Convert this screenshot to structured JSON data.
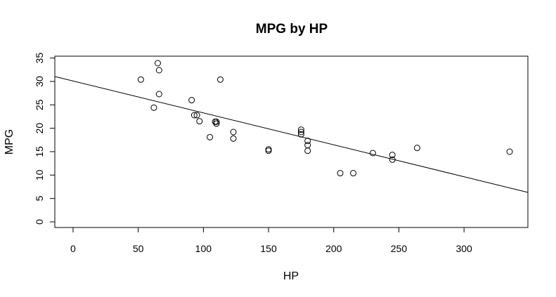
{
  "chart_data": {
    "type": "scatter",
    "title": "MPG by HP",
    "xlabel": "HP",
    "ylabel": "MPG",
    "xlim": [
      -14,
      349
    ],
    "ylim": [
      -1.2,
      35.4
    ],
    "grid": false,
    "xticks": [
      0,
      50,
      100,
      150,
      200,
      250,
      300
    ],
    "xtick_labels": [
      "0",
      "50",
      "100",
      "150",
      "200",
      "250",
      "300"
    ],
    "yticks": [
      0,
      5,
      10,
      15,
      20,
      25,
      30,
      35
    ],
    "ytick_labels": [
      "0",
      "5",
      "10",
      "15",
      "20",
      "25",
      "30",
      "35"
    ],
    "points": [
      {
        "x": 110,
        "y": 21.0
      },
      {
        "x": 110,
        "y": 21.0
      },
      {
        "x": 93,
        "y": 22.8
      },
      {
        "x": 110,
        "y": 21.4
      },
      {
        "x": 175,
        "y": 18.7
      },
      {
        "x": 105,
        "y": 18.1
      },
      {
        "x": 245,
        "y": 14.3
      },
      {
        "x": 62,
        "y": 24.4
      },
      {
        "x": 95,
        "y": 22.8
      },
      {
        "x": 123,
        "y": 19.2
      },
      {
        "x": 123,
        "y": 17.8
      },
      {
        "x": 180,
        "y": 16.4
      },
      {
        "x": 180,
        "y": 17.3
      },
      {
        "x": 180,
        "y": 15.2
      },
      {
        "x": 205,
        "y": 10.4
      },
      {
        "x": 215,
        "y": 10.4
      },
      {
        "x": 230,
        "y": 14.7
      },
      {
        "x": 66,
        "y": 32.4
      },
      {
        "x": 52,
        "y": 30.4
      },
      {
        "x": 65,
        "y": 33.9
      },
      {
        "x": 97,
        "y": 21.5
      },
      {
        "x": 150,
        "y": 15.5
      },
      {
        "x": 150,
        "y": 15.2
      },
      {
        "x": 245,
        "y": 13.3
      },
      {
        "x": 175,
        "y": 19.2
      },
      {
        "x": 66,
        "y": 27.3
      },
      {
        "x": 91,
        "y": 26.0
      },
      {
        "x": 113,
        "y": 30.4
      },
      {
        "x": 264,
        "y": 15.8
      },
      {
        "x": 175,
        "y": 19.7
      },
      {
        "x": 335,
        "y": 15.0
      },
      {
        "x": 109,
        "y": 21.4
      }
    ],
    "regression_line": {
      "intercept": 30.1,
      "slope": -0.0682
    }
  }
}
